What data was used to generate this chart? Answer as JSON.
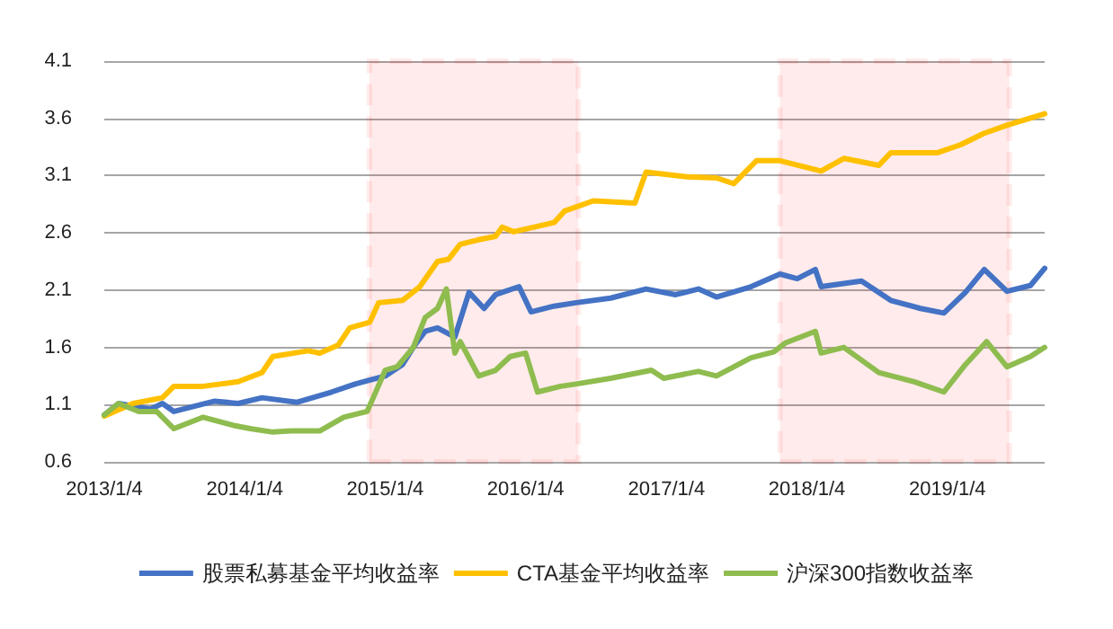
{
  "chart_data": {
    "type": "line",
    "ylim": [
      0.6,
      4.1
    ],
    "yticks": [
      0.6,
      1.1,
      1.6,
      2.1,
      2.6,
      3.1,
      3.6,
      4.1
    ],
    "xlim": [
      "2013-01-04",
      "2019-09-14"
    ],
    "xticks": [
      {
        "value": "2013-01-04",
        "label": "2013/1/4"
      },
      {
        "value": "2014-01-04",
        "label": "2014/1/4"
      },
      {
        "value": "2015-01-04",
        "label": "2015/1/4"
      },
      {
        "value": "2016-01-04",
        "label": "2016/1/4"
      },
      {
        "value": "2017-01-04",
        "label": "2017/1/4"
      },
      {
        "value": "2018-01-04",
        "label": "2018/1/4"
      },
      {
        "value": "2019-01-04",
        "label": "2019/1/4"
      }
    ],
    "grid": "y",
    "legend": "bottom",
    "marker": "none",
    "line_style": "solid",
    "bands": [
      {
        "axis": "x",
        "from": "2014-11-24",
        "to": "2016-05-20",
        "color": "#ff0000"
      },
      {
        "axis": "x",
        "from": "2017-10-26",
        "to": "2019-06-14",
        "color": "#ff0000"
      }
    ],
    "series": [
      {
        "name": "股票私募基金平均收益率",
        "color": "#4472c4",
        "x": [
          "2013-01-04",
          "2013-02-10",
          "2013-05-04",
          "2013-06-04",
          "2013-07-04",
          "2013-10-18",
          "2013-12-18",
          "2014-02-18",
          "2014-05-20",
          "2014-08-18",
          "2014-10-18",
          "2015-01-04",
          "2015-02-18",
          "2015-03-18",
          "2015-04-18",
          "2015-05-20",
          "2015-07-04",
          "2015-08-10",
          "2015-09-18",
          "2015-10-18",
          "2015-12-18",
          "2016-01-18",
          "2016-03-18",
          "2016-05-14",
          "2016-08-12",
          "2016-11-12",
          "2017-01-28",
          "2017-03-28",
          "2017-05-14",
          "2017-08-12",
          "2017-10-26",
          "2017-12-10",
          "2018-01-26",
          "2018-02-10",
          "2018-05-26",
          "2018-08-10",
          "2018-10-26",
          "2018-12-26",
          "2019-02-20",
          "2019-04-10",
          "2019-06-08",
          "2019-08-08",
          "2019-09-14"
        ],
        "values": [
          1.01,
          1.11,
          1.06,
          1.11,
          1.04,
          1.13,
          1.11,
          1.16,
          1.12,
          1.21,
          1.28,
          1.35,
          1.45,
          1.6,
          1.74,
          1.77,
          1.69,
          2.08,
          1.94,
          2.06,
          2.13,
          1.91,
          1.96,
          1.99,
          2.03,
          2.11,
          2.06,
          2.11,
          2.04,
          2.13,
          2.24,
          2.2,
          2.28,
          2.13,
          2.18,
          2.01,
          1.94,
          1.9,
          2.08,
          2.28,
          2.09,
          2.14,
          2.29
        ]
      },
      {
        "name": "CTA基金平均收益率",
        "color": "#ffc000",
        "x": [
          "2013-01-04",
          "2013-03-20",
          "2013-06-04",
          "2013-07-04",
          "2013-09-18",
          "2013-12-18",
          "2014-02-18",
          "2014-03-18",
          "2014-06-18",
          "2014-07-18",
          "2014-09-04",
          "2014-10-04",
          "2014-11-25",
          "2014-12-18",
          "2015-02-18",
          "2015-04-04",
          "2015-05-20",
          "2015-06-18",
          "2015-07-18",
          "2015-09-04",
          "2015-10-18",
          "2015-11-04",
          "2015-12-04",
          "2016-03-18",
          "2016-04-14",
          "2016-06-28",
          "2016-10-14",
          "2016-11-12",
          "2017-02-26",
          "2017-05-14",
          "2017-06-28",
          "2017-08-26",
          "2017-10-26",
          "2018-02-10",
          "2018-04-10",
          "2018-07-10",
          "2018-08-10",
          "2018-12-10",
          "2019-02-08",
          "2019-04-10",
          "2019-06-08",
          "2019-09-14"
        ],
        "values": [
          1.0,
          1.11,
          1.16,
          1.26,
          1.26,
          1.3,
          1.38,
          1.52,
          1.57,
          1.55,
          1.62,
          1.77,
          1.82,
          1.99,
          2.01,
          2.13,
          2.35,
          2.37,
          2.5,
          2.54,
          2.57,
          2.65,
          2.61,
          2.69,
          2.79,
          2.88,
          2.86,
          3.13,
          3.09,
          3.08,
          3.03,
          3.23,
          3.23,
          3.14,
          3.25,
          3.19,
          3.3,
          3.3,
          3.37,
          3.47,
          3.54,
          3.64
        ]
      },
      {
        "name": "沪深300指数收益率",
        "color": "#8fbc4f",
        "x": [
          "2013-01-04",
          "2013-02-10",
          "2013-04-04",
          "2013-05-20",
          "2013-07-04",
          "2013-09-18",
          "2013-12-04",
          "2014-01-18",
          "2014-03-18",
          "2014-05-04",
          "2014-07-18",
          "2014-09-18",
          "2014-11-18",
          "2014-12-04",
          "2015-01-04",
          "2015-02-04",
          "2015-03-18",
          "2015-04-18",
          "2015-05-20",
          "2015-06-12",
          "2015-07-04",
          "2015-07-18",
          "2015-09-04",
          "2015-10-18",
          "2015-11-25",
          "2016-01-04",
          "2016-02-04",
          "2016-04-04",
          "2016-05-14",
          "2016-08-12",
          "2016-11-26",
          "2016-12-28",
          "2017-03-28",
          "2017-05-14",
          "2017-08-12",
          "2017-10-10",
          "2017-11-10",
          "2018-01-26",
          "2018-02-10",
          "2018-04-10",
          "2018-07-10",
          "2018-10-10",
          "2018-12-26",
          "2019-02-20",
          "2019-04-16",
          "2019-06-08",
          "2019-08-08",
          "2019-09-14"
        ],
        "values": [
          1.01,
          1.11,
          1.04,
          1.04,
          0.89,
          0.99,
          0.92,
          0.89,
          0.86,
          0.87,
          0.87,
          0.99,
          1.04,
          1.16,
          1.4,
          1.43,
          1.6,
          1.86,
          1.94,
          2.11,
          1.55,
          1.65,
          1.35,
          1.4,
          1.52,
          1.55,
          1.21,
          1.26,
          1.28,
          1.33,
          1.4,
          1.33,
          1.39,
          1.35,
          1.51,
          1.56,
          1.64,
          1.74,
          1.55,
          1.6,
          1.38,
          1.3,
          1.21,
          1.45,
          1.65,
          1.43,
          1.52,
          1.6
        ]
      }
    ]
  }
}
